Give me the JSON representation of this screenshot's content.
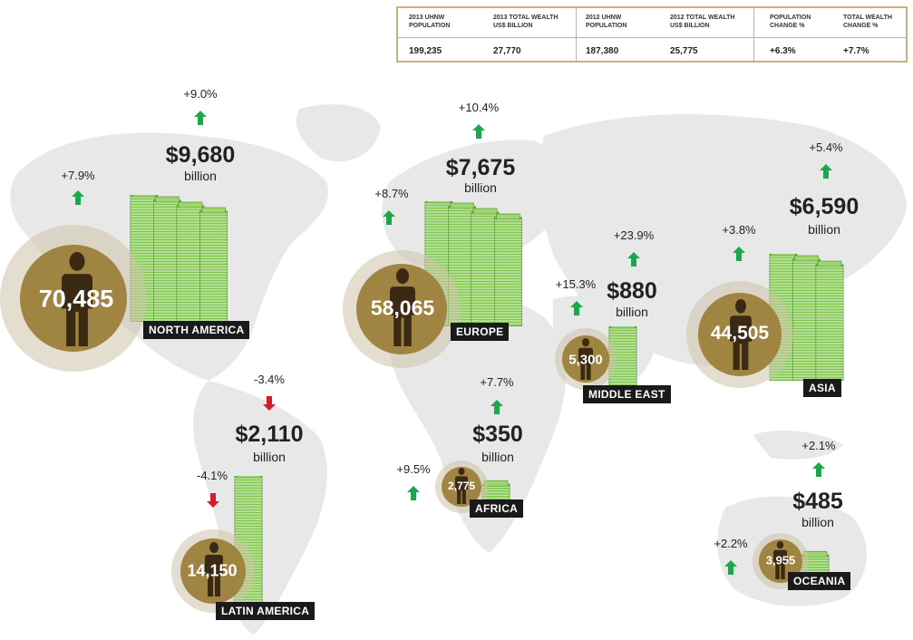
{
  "summary": {
    "headers": [
      "2013 UHNW POPULATION",
      "2013 TOTAL WEALTH US$ BILLION",
      "2012 UHNW POPULATION",
      "2012 TOTAL WEALTH US$ BILLION",
      "POPULATION CHANGE %",
      "TOTAL WEALTH CHANGE %"
    ],
    "values": [
      "199,235",
      "27,770",
      "187,380",
      "25,775",
      "+6.3%",
      "+7.7%"
    ]
  },
  "colors": {
    "gold": "#a08441",
    "halo": "#cdc3aa",
    "up": "#1aa84a",
    "down": "#d01f2a",
    "map": "#e7e7e8",
    "cash": "#7ec84b"
  },
  "regions": {
    "north_america": {
      "label": "NORTH AMERICA",
      "population": "70,485",
      "wealth": "$9,680",
      "unit": "billion",
      "pop_change": "+7.9%",
      "wealth_change": "+9.0%"
    },
    "europe": {
      "label": "EUROPE",
      "population": "58,065",
      "wealth": "$7,675",
      "unit": "billion",
      "pop_change": "+8.7%",
      "wealth_change": "+10.4%"
    },
    "middle_east": {
      "label": "MIDDLE EAST",
      "population": "5,300",
      "wealth": "$880",
      "unit": "billion",
      "pop_change": "+15.3%",
      "wealth_change": "+23.9%"
    },
    "asia": {
      "label": "ASIA",
      "population": "44,505",
      "wealth": "$6,590",
      "unit": "billion",
      "pop_change": "+3.8%",
      "wealth_change": "+5.4%"
    },
    "latin_america": {
      "label": "LATIN AMERICA",
      "population": "14,150",
      "wealth": "$2,110",
      "unit": "billion",
      "pop_change": "-4.1%",
      "wealth_change": "-3.4%"
    },
    "africa": {
      "label": "AFRICA",
      "population": "2,775",
      "wealth": "$350",
      "unit": "billion",
      "pop_change": "+9.5%",
      "wealth_change": "+7.7%"
    },
    "oceania": {
      "label": "OCEANIA",
      "population": "3,955",
      "wealth": "$485",
      "unit": "billion",
      "pop_change": "+2.2%",
      "wealth_change": "+2.1%"
    }
  }
}
